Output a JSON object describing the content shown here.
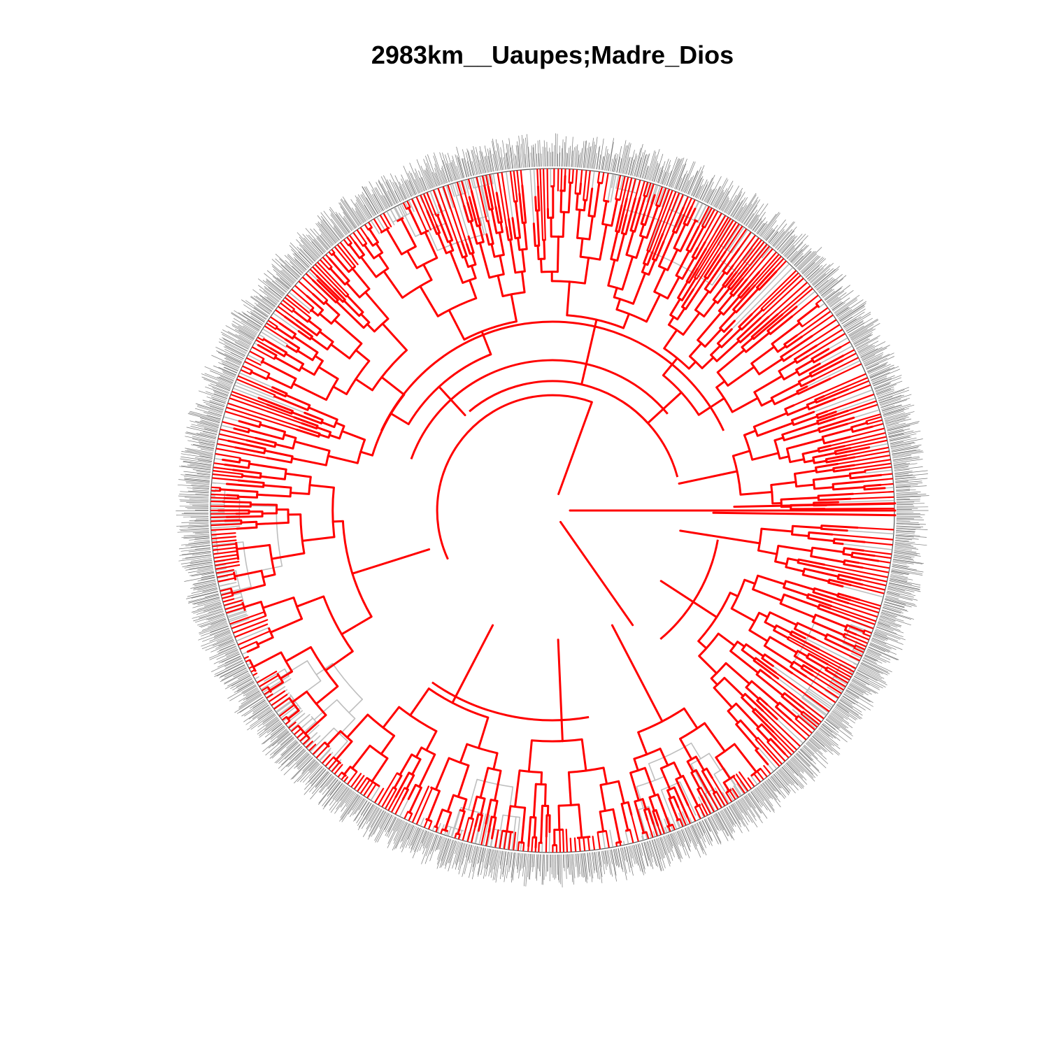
{
  "title": "2983km__Uaupes;Madre_Dios",
  "tree": {
    "layout": "fan",
    "colors": {
      "highlight": "#ff0000",
      "background_branch": "#bebebe",
      "tip_label": "#777777"
    }
  }
}
